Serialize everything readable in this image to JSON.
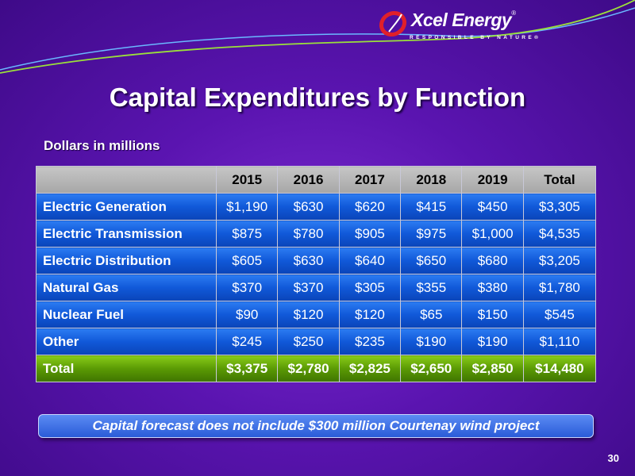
{
  "logo": {
    "name": "Xcel Energy",
    "reg": "®",
    "tagline": "RESPONSIBLE BY NATURE®"
  },
  "title": "Capital Expenditures by Function",
  "subtitle": "Dollars in millions",
  "table": {
    "headers": [
      "",
      "2015",
      "2016",
      "2017",
      "2018",
      "2019",
      "Total"
    ],
    "rows": [
      {
        "label": "Electric Generation",
        "values": [
          "$1,190",
          "$630",
          "$620",
          "$415",
          "$450",
          "$3,305"
        ]
      },
      {
        "label": "Electric Transmission",
        "values": [
          "$875",
          "$780",
          "$905",
          "$975",
          "$1,000",
          "$4,535"
        ]
      },
      {
        "label": "Electric Distribution",
        "values": [
          "$605",
          "$630",
          "$640",
          "$650",
          "$680",
          "$3,205"
        ]
      },
      {
        "label": "Natural Gas",
        "values": [
          "$370",
          "$370",
          "$305",
          "$355",
          "$380",
          "$1,780"
        ]
      },
      {
        "label": "Nuclear Fuel",
        "values": [
          "$90",
          "$120",
          "$120",
          "$65",
          "$150",
          "$545"
        ]
      },
      {
        "label": "Other",
        "values": [
          "$245",
          "$250",
          "$235",
          "$190",
          "$190",
          "$1,110"
        ]
      }
    ],
    "total": {
      "label": "Total",
      "values": [
        "$3,375",
        "$2,780",
        "$2,825",
        "$2,650",
        "$2,850",
        "$14,480"
      ]
    }
  },
  "note": "Capital forecast does not include $300 million Courtenay wind project",
  "page_number": "30",
  "colors": {
    "background": "#5a14b0",
    "row_blue": "#1058d8",
    "total_green": "#5a9a04",
    "header_gray": "#b6b6b6",
    "swoosh_green": "#9be03a",
    "swoosh_blue": "#6ab8ff",
    "logo_red": "#e0202a"
  }
}
